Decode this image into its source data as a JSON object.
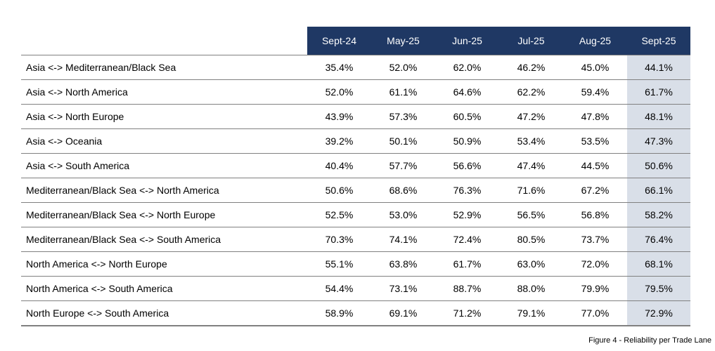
{
  "figure": {
    "caption": "Figure 4 - Reliability per Trade Lane"
  },
  "table": {
    "columns": [
      "Sept-24",
      "May-25",
      "Jun-25",
      "Jul-25",
      "Aug-25",
      "Sept-25"
    ],
    "highlighted_column": "Sept-25",
    "rows": [
      {
        "lane": "Asia <-> Mediterranean/Black Sea",
        "values": [
          "35.4%",
          "52.0%",
          "62.0%",
          "46.2%",
          "45.0%",
          "44.1%"
        ]
      },
      {
        "lane": "Asia <-> North America",
        "values": [
          "52.0%",
          "61.1%",
          "64.6%",
          "62.2%",
          "59.4%",
          "61.7%"
        ]
      },
      {
        "lane": "Asia <-> North Europe",
        "values": [
          "43.9%",
          "57.3%",
          "60.5%",
          "47.2%",
          "47.8%",
          "48.1%"
        ]
      },
      {
        "lane": "Asia <-> Oceania",
        "values": [
          "39.2%",
          "50.1%",
          "50.9%",
          "53.4%",
          "53.5%",
          "47.3%"
        ]
      },
      {
        "lane": "Asia <-> South America",
        "values": [
          "40.4%",
          "57.7%",
          "56.6%",
          "47.4%",
          "44.5%",
          "50.6%"
        ]
      },
      {
        "lane": "Mediterranean/Black Sea <-> North America",
        "values": [
          "50.6%",
          "68.6%",
          "76.3%",
          "71.6%",
          "67.2%",
          "66.1%"
        ]
      },
      {
        "lane": "Mediterranean/Black Sea <-> North Europe",
        "values": [
          "52.5%",
          "53.0%",
          "52.9%",
          "56.5%",
          "56.8%",
          "58.2%"
        ]
      },
      {
        "lane": "Mediterranean/Black Sea <-> South America",
        "values": [
          "70.3%",
          "74.1%",
          "72.4%",
          "80.5%",
          "73.7%",
          "76.4%"
        ]
      },
      {
        "lane": "North America <-> North Europe",
        "values": [
          "55.1%",
          "63.8%",
          "61.7%",
          "63.0%",
          "72.0%",
          "68.1%"
        ]
      },
      {
        "lane": "North America <-> South America",
        "values": [
          "54.4%",
          "73.1%",
          "88.7%",
          "88.0%",
          "79.9%",
          "79.5%"
        ]
      },
      {
        "lane": "North Europe <-> South America",
        "values": [
          "58.9%",
          "69.1%",
          "71.2%",
          "79.1%",
          "77.0%",
          "72.9%"
        ]
      }
    ]
  },
  "colors": {
    "header_bg": "#1F3864",
    "header_text": "#FFFFFF",
    "highlight_bg": "#D9DFE8",
    "border": "#808080",
    "text": "#000000"
  }
}
